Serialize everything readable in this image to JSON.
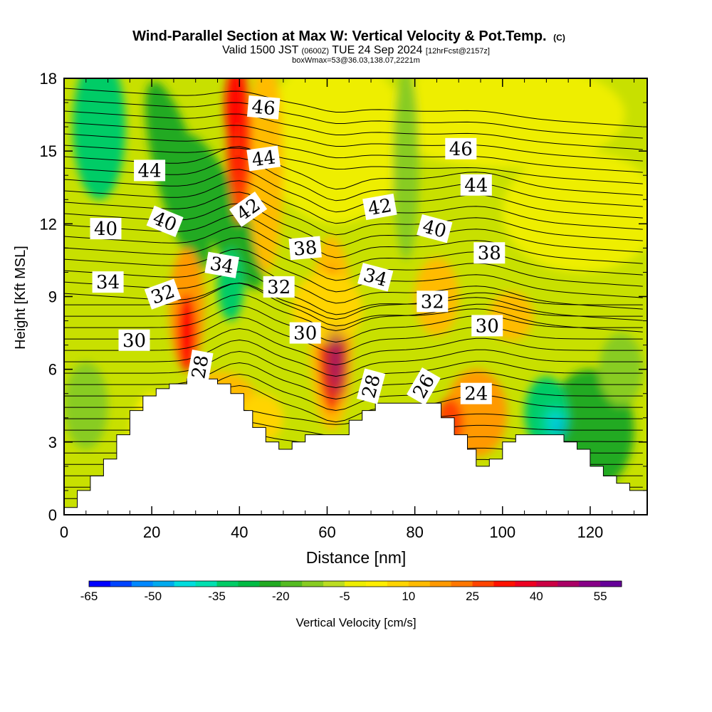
{
  "chart_data": {
    "type": "heatmap",
    "title": "Wind-Parallel Section at Max W: Vertical Velocity & Pot.Temp.",
    "title_suffix": "(C)",
    "subtitle": {
      "part1": "Valid 1500 JST",
      "part2": "(0600Z)",
      "part3": "TUE 24 Sep 2024",
      "part4": "[12hrFcst@2157z]"
    },
    "subtitle2": "boxWmax=53@36.03,138.07,2221m",
    "xlabel": "Distance [nm]",
    "ylabel": "Height [Kft MSL]",
    "xlim": [
      0,
      133
    ],
    "ylim": [
      0,
      18
    ],
    "x_ticks": [
      "0",
      "20",
      "40",
      "60",
      "80",
      "100",
      "120"
    ],
    "y_ticks": [
      "0",
      "3",
      "6",
      "9",
      "12",
      "15",
      "18"
    ],
    "colorbar": {
      "label": "Vertical Velocity [cm/s]",
      "tick_labels": [
        "-65",
        "-50",
        "-35",
        "-20",
        "-5",
        "10",
        "25",
        "40",
        "55"
      ],
      "colors": [
        "#0000ff",
        "#0044ff",
        "#0088ff",
        "#00aaee",
        "#00dddd",
        "#00e0b0",
        "#00cc66",
        "#00bb44",
        "#22aa22",
        "#55bb22",
        "#88cc22",
        "#bbdd22",
        "#eeee00",
        "#ffee00",
        "#ffd400",
        "#ffbb00",
        "#ff9900",
        "#ff7700",
        "#ff4400",
        "#ff1100",
        "#ee0022",
        "#cc0044",
        "#aa0066",
        "#880088",
        "#660099"
      ]
    },
    "terrain": [
      [
        0,
        0.3
      ],
      [
        3,
        0.3
      ],
      [
        3,
        1.0
      ],
      [
        6,
        1.0
      ],
      [
        6,
        1.6
      ],
      [
        9,
        1.6
      ],
      [
        9,
        2.3
      ],
      [
        12,
        2.3
      ],
      [
        12,
        3.3
      ],
      [
        15,
        3.3
      ],
      [
        15,
        4.3
      ],
      [
        18,
        4.3
      ],
      [
        18,
        4.9
      ],
      [
        21,
        4.9
      ],
      [
        21,
        5.2
      ],
      [
        24,
        5.2
      ],
      [
        24,
        5.4
      ],
      [
        28,
        5.4
      ],
      [
        28,
        5.6
      ],
      [
        35,
        5.6
      ],
      [
        35,
        5.4
      ],
      [
        38,
        5.4
      ],
      [
        38,
        5.0
      ],
      [
        41,
        5.0
      ],
      [
        41,
        4.3
      ],
      [
        43,
        4.3
      ],
      [
        43,
        3.6
      ],
      [
        46,
        3.6
      ],
      [
        46,
        3.0
      ],
      [
        49,
        3.0
      ],
      [
        49,
        2.7
      ],
      [
        52,
        2.7
      ],
      [
        52,
        3.0
      ],
      [
        55,
        3.0
      ],
      [
        55,
        3.3
      ],
      [
        65,
        3.3
      ],
      [
        65,
        3.9
      ],
      [
        68,
        3.9
      ],
      [
        68,
        4.3
      ],
      [
        71,
        4.3
      ],
      [
        71,
        4.6
      ],
      [
        86,
        4.6
      ],
      [
        86,
        4.0
      ],
      [
        89,
        4.0
      ],
      [
        89,
        3.3
      ],
      [
        92,
        3.3
      ],
      [
        92,
        2.7
      ],
      [
        94,
        2.7
      ],
      [
        94,
        2.0
      ],
      [
        97,
        2.0
      ],
      [
        97,
        2.3
      ],
      [
        100,
        2.3
      ],
      [
        100,
        3.0
      ],
      [
        103,
        3.0
      ],
      [
        103,
        3.3
      ],
      [
        114,
        3.3
      ],
      [
        114,
        3.0
      ],
      [
        117,
        3.0
      ],
      [
        117,
        2.7
      ],
      [
        120,
        2.7
      ],
      [
        120,
        2.0
      ],
      [
        123,
        2.0
      ],
      [
        123,
        1.6
      ],
      [
        126,
        1.6
      ],
      [
        126,
        1.3
      ],
      [
        129,
        1.3
      ],
      [
        129,
        1.0
      ],
      [
        133,
        1.0
      ]
    ],
    "theta_contour_labels": [
      {
        "text": "46",
        "x": 45.5,
        "y": 16.8,
        "angle": 5
      },
      {
        "text": "44",
        "x": 45.5,
        "y": 14.7,
        "angle": -8
      },
      {
        "text": "42",
        "x": 42.0,
        "y": 12.6,
        "angle": -35
      },
      {
        "text": "44",
        "x": 19.5,
        "y": 14.2,
        "angle": 0
      },
      {
        "text": "40",
        "x": 23.0,
        "y": 12.1,
        "angle": 22
      },
      {
        "text": "40",
        "x": 9.5,
        "y": 11.8,
        "angle": 0
      },
      {
        "text": "34",
        "x": 36.0,
        "y": 10.3,
        "angle": 10
      },
      {
        "text": "38",
        "x": 55.0,
        "y": 11.0,
        "angle": -5
      },
      {
        "text": "42",
        "x": 72.0,
        "y": 12.7,
        "angle": -10
      },
      {
        "text": "40",
        "x": 84.5,
        "y": 11.8,
        "angle": 15
      },
      {
        "text": "38",
        "x": 97.0,
        "y": 10.8,
        "angle": 0
      },
      {
        "text": "46",
        "x": 90.5,
        "y": 15.1,
        "angle": 0
      },
      {
        "text": "44",
        "x": 94.0,
        "y": 13.6,
        "angle": 0
      },
      {
        "text": "34",
        "x": 10.0,
        "y": 9.6,
        "angle": 0
      },
      {
        "text": "32",
        "x": 22.5,
        "y": 9.1,
        "angle": -20
      },
      {
        "text": "32",
        "x": 49.0,
        "y": 9.4,
        "angle": 0
      },
      {
        "text": "34",
        "x": 71.0,
        "y": 9.8,
        "angle": 15
      },
      {
        "text": "32",
        "x": 84.0,
        "y": 8.8,
        "angle": 0
      },
      {
        "text": "30",
        "x": 96.5,
        "y": 7.8,
        "angle": 0
      },
      {
        "text": "30",
        "x": 16.0,
        "y": 7.2,
        "angle": 0
      },
      {
        "text": "30",
        "x": 55.0,
        "y": 7.5,
        "angle": 0
      },
      {
        "text": "28",
        "x": 31.0,
        "y": 6.1,
        "angle": -80
      },
      {
        "text": "28",
        "x": 70.0,
        "y": 5.3,
        "angle": -75
      },
      {
        "text": "26",
        "x": 82.0,
        "y": 5.3,
        "angle": -60
      },
      {
        "text": "24",
        "x": 94.0,
        "y": 5.0,
        "angle": 0
      }
    ]
  }
}
